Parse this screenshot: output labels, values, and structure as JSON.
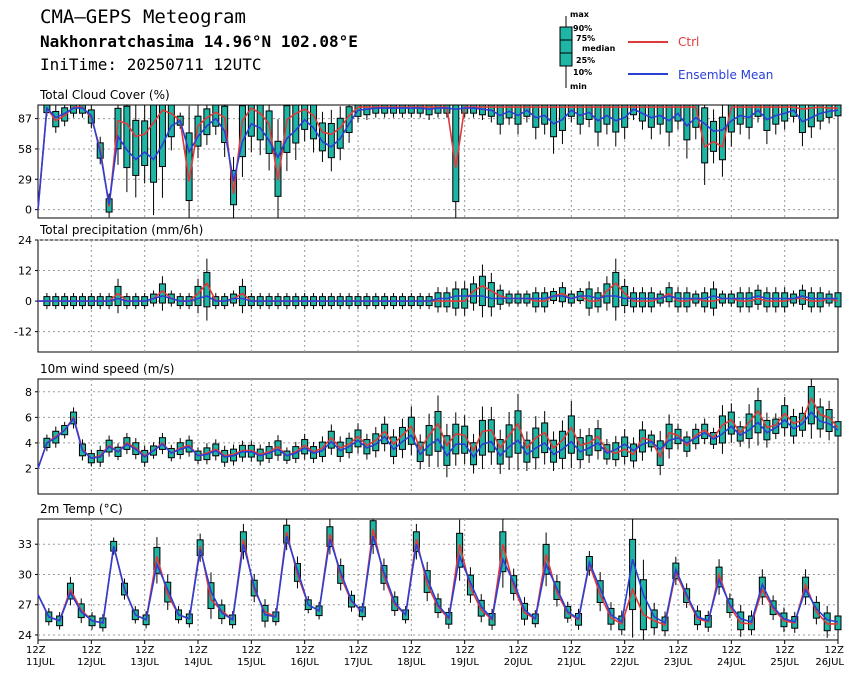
{
  "header": {
    "title": "CMA—GEPS Meteogram",
    "location": "Nakhonratchasima 14.96°N 102.08°E",
    "init_time": "IniTime: 20250711 12UTC"
  },
  "legend": {
    "box_labels": [
      "max",
      "90%",
      "75%",
      "median",
      "25%",
      "10%",
      "min"
    ],
    "ctrl_label": "Ctrl",
    "mean_label": "Ensemble Mean",
    "colors": {
      "ctrl": "#e03a3a",
      "mean": "#2a3fd6",
      "box": "#1fb5a5"
    }
  },
  "x_axis": {
    "ticks": [
      {
        "top": "12Z",
        "bottom": "11JUL"
      },
      {
        "top": "12Z",
        "bottom": "12JUL"
      },
      {
        "top": "12Z",
        "bottom": "13JUL"
      },
      {
        "top": "12Z",
        "bottom": "14JUL"
      },
      {
        "top": "12Z",
        "bottom": "15JUL"
      },
      {
        "top": "12Z",
        "bottom": "16JUL"
      },
      {
        "top": "12Z",
        "bottom": "17JUL"
      },
      {
        "top": "12Z",
        "bottom": "18JUL"
      },
      {
        "top": "12Z",
        "bottom": "19JUL"
      },
      {
        "top": "12Z",
        "bottom": "20JUL"
      },
      {
        "top": "12Z",
        "bottom": "21JUL"
      },
      {
        "top": "12Z",
        "bottom": "22JUL"
      },
      {
        "top": "12Z",
        "bottom": "23JUL"
      },
      {
        "top": "12Z",
        "bottom": "24JUL"
      },
      {
        "top": "12Z",
        "bottom": "25JUL"
      },
      {
        "top": "12Z",
        "bottom": "26JUL"
      }
    ]
  },
  "chart_data": [
    {
      "type": "line",
      "title": "Total Cloud Cover (%)",
      "ylim": [
        -8,
        100
      ],
      "yticks": [
        0,
        29,
        58,
        87
      ],
      "x_unit": "6-hourly steps from 2025-07-11 12UTC",
      "series": [
        {
          "name": "Ctrl",
          "values": [
            0,
            97,
            85,
            90,
            98,
            98,
            88,
            58,
            3,
            85,
            82,
            70,
            72,
            83,
            95,
            92,
            85,
            27,
            80,
            88,
            93,
            88,
            15,
            85,
            97,
            92,
            82,
            28,
            86,
            92,
            96,
            90,
            74,
            72,
            78,
            90,
            98,
            98,
            98,
            98,
            98,
            98,
            98,
            98,
            98,
            98,
            98,
            40,
            98,
            98,
            98,
            98,
            98,
            98,
            98,
            98,
            98,
            98,
            98,
            98,
            98,
            98,
            98,
            98,
            98,
            98,
            98,
            98,
            98,
            98,
            98,
            98,
            98,
            98,
            98,
            60,
            65,
            60,
            98,
            98,
            98,
            98,
            98,
            98,
            98,
            98,
            96,
            97,
            98,
            97,
            97
          ]
        },
        {
          "name": "Ensemble Mean",
          "values": [
            0,
            97,
            88,
            92,
            97,
            97,
            90,
            55,
            5,
            70,
            57,
            48,
            55,
            48,
            62,
            80,
            85,
            55,
            70,
            80,
            87,
            75,
            27,
            65,
            82,
            78,
            66,
            50,
            68,
            76,
            86,
            78,
            65,
            60,
            68,
            82,
            95,
            96,
            97,
            97,
            97,
            97,
            97,
            97,
            96,
            97,
            97,
            96,
            97,
            97,
            96,
            95,
            90,
            94,
            90,
            95,
            88,
            90,
            82,
            86,
            95,
            90,
            93,
            85,
            90,
            85,
            88,
            96,
            92,
            88,
            90,
            85,
            92,
            80,
            88,
            82,
            75,
            76,
            85,
            90,
            88,
            95,
            86,
            90,
            92,
            95,
            84,
            88,
            92,
            94,
            95
          ]
        }
      ]
    },
    {
      "type": "line",
      "title": "Total precipitation (mm/6h)",
      "ylim": [
        -20,
        24
      ],
      "yticks": [
        -12,
        0,
        12,
        24
      ],
      "series": [
        {
          "name": "Ctrl",
          "values": [
            0,
            0,
            0,
            0,
            0,
            0,
            0,
            0,
            0,
            3,
            0,
            0,
            0,
            1,
            4,
            1,
            0,
            0,
            3,
            7,
            0,
            0,
            1,
            3,
            0,
            0,
            0,
            0,
            0,
            0,
            0,
            0,
            0,
            0,
            0,
            0,
            0,
            0,
            0,
            0,
            0,
            0,
            0,
            0,
            0,
            0,
            0,
            0,
            0,
            4,
            6,
            4,
            2,
            1,
            1,
            1,
            0,
            0,
            2,
            3,
            1,
            2,
            0,
            0,
            4,
            7,
            3,
            0,
            0,
            0,
            1,
            3,
            0,
            0,
            1,
            0,
            0,
            1,
            1,
            0,
            0,
            1,
            0,
            0,
            0,
            1,
            1,
            0,
            0,
            1,
            0
          ]
        },
        {
          "name": "Ensemble Mean",
          "values": [
            0,
            0,
            0,
            0,
            0,
            0,
            0,
            0,
            0,
            1,
            0,
            0,
            0,
            1,
            2,
            1,
            0,
            0,
            1,
            2,
            0,
            0,
            1,
            1,
            0,
            0,
            0,
            0,
            0,
            0,
            0,
            0,
            0,
            0,
            0,
            0,
            0,
            0,
            0,
            0,
            0,
            0,
            0,
            0,
            0,
            1,
            1,
            2,
            2,
            2,
            2,
            1,
            1,
            1,
            1,
            1,
            1,
            1,
            2,
            2,
            1,
            2,
            2,
            1,
            2,
            2,
            1,
            1,
            1,
            1,
            1,
            2,
            1,
            1,
            1,
            1,
            2,
            1,
            1,
            1,
            1,
            2,
            1,
            1,
            1,
            1,
            2,
            1,
            1,
            1,
            1
          ]
        }
      ]
    },
    {
      "type": "line",
      "title": "10m wind speed (m/s)",
      "ylim": [
        0,
        9
      ],
      "yticks": [
        2,
        4,
        6,
        8
      ],
      "series": [
        {
          "name": "Ctrl",
          "values": [
            2.0,
            4.0,
            4.5,
            5.0,
            6.0,
            3.5,
            2.8,
            3.0,
            3.8,
            3.3,
            4.0,
            3.6,
            3.0,
            3.4,
            4.0,
            3.2,
            3.6,
            3.8,
            3.0,
            3.2,
            3.5,
            3.0,
            3.1,
            3.4,
            3.4,
            3.1,
            3.3,
            3.7,
            3.0,
            3.3,
            3.8,
            3.3,
            3.6,
            4.4,
            3.6,
            3.9,
            4.5,
            3.8,
            4.2,
            4.9,
            3.9,
            4.6,
            5.3,
            3.5,
            4.6,
            5.5,
            3.8,
            4.7,
            4.6,
            3.4,
            4.9,
            5.0,
            3.6,
            4.6,
            5.5,
            3.6,
            4.4,
            4.8,
            3.6,
            4.2,
            5.2,
            3.8,
            4.0,
            4.5,
            3.4,
            3.2,
            3.5,
            3.1,
            4.4,
            4.2,
            2.9,
            4.8,
            4.6,
            3.8,
            4.6,
            5.0,
            4.4,
            5.4,
            5.8,
            4.8,
            5.6,
            6.5,
            5.2,
            5.4,
            6.3,
            5.5,
            5.8,
            7.5,
            6.2,
            6.0,
            5.2
          ]
        },
        {
          "name": "Ensemble Mean",
          "values": [
            2.0,
            4.0,
            4.4,
            5.0,
            5.9,
            3.4,
            2.8,
            2.9,
            3.7,
            3.3,
            3.9,
            3.5,
            2.9,
            3.4,
            3.9,
            3.2,
            3.5,
            3.7,
            3.0,
            3.1,
            3.4,
            2.9,
            3.0,
            3.3,
            3.3,
            3.0,
            3.2,
            3.5,
            3.0,
            3.2,
            3.6,
            3.2,
            3.4,
            4.1,
            3.4,
            3.7,
            4.2,
            3.6,
            3.9,
            4.5,
            3.5,
            4.1,
            4.6,
            3.1,
            3.8,
            4.3,
            3.0,
            3.9,
            3.9,
            2.9,
            3.9,
            4.1,
            3.0,
            3.7,
            4.2,
            3.1,
            3.6,
            4.0,
            3.1,
            3.5,
            4.1,
            3.3,
            3.6,
            4.0,
            3.2,
            3.5,
            3.9,
            3.4,
            3.9,
            4.1,
            3.5,
            4.2,
            4.4,
            4.0,
            4.4,
            4.8,
            4.3,
            4.7,
            5.3,
            4.6,
            5.0,
            5.6,
            4.8,
            5.2,
            5.8,
            5.1,
            5.5,
            6.4,
            5.7,
            5.5,
            5.0
          ]
        }
      ]
    },
    {
      "type": "line",
      "title": "2m Temp (°C)",
      "ylim": [
        23.5,
        35.5
      ],
      "yticks": [
        24,
        27,
        30,
        33
      ],
      "series": [
        {
          "name": "Ctrl",
          "values": [
            28.0,
            25.8,
            25.4,
            28.5,
            26.5,
            25.4,
            25.2,
            32.8,
            28.5,
            26.0,
            25.5,
            31.8,
            28.0,
            26.0,
            25.6,
            32.8,
            27.5,
            26.4,
            25.5,
            33.5,
            28.5,
            26.3,
            25.8,
            34.2,
            30.0,
            27.0,
            26.4,
            34.0,
            29.8,
            27.3,
            26.3,
            34.5,
            29.8,
            27.0,
            26.0,
            33.5,
            29.0,
            26.8,
            25.6,
            33.0,
            28.7,
            26.5,
            25.5,
            33.0,
            28.8,
            26.2,
            25.6,
            32.0,
            28.2,
            26.2,
            25.5,
            31.0,
            28.0,
            25.7,
            25.1,
            28.5,
            26.0,
            25.4,
            25.0,
            30.2,
            27.8,
            25.6,
            25.3,
            30.0,
            26.8,
            25.2,
            25.1,
            28.5,
            26.6,
            25.4,
            25.2,
            29.0,
            26.3,
            25.1,
            25.1
          ]
        },
        {
          "name": "Ensemble Mean",
          "values": [
            28.0,
            25.8,
            25.4,
            28.2,
            26.3,
            25.4,
            25.2,
            32.8,
            28.6,
            26.0,
            25.5,
            31.0,
            28.5,
            26.0,
            25.6,
            32.5,
            28.3,
            26.2,
            25.5,
            33.0,
            28.8,
            26.0,
            25.8,
            33.8,
            30.4,
            27.0,
            26.4,
            33.5,
            30.2,
            27.4,
            26.3,
            33.8,
            30.2,
            27.2,
            26.0,
            33.0,
            29.6,
            27.0,
            25.7,
            31.8,
            29.2,
            26.8,
            25.6,
            31.5,
            29.2,
            26.5,
            25.6,
            31.0,
            28.6,
            26.3,
            25.6,
            31.2,
            28.6,
            26.0,
            25.3,
            31.5,
            28.0,
            25.8,
            25.2,
            30.5,
            28.0,
            25.8,
            25.4,
            29.5,
            27.0,
            25.6,
            25.3,
            29.0,
            26.8,
            25.6,
            25.3,
            28.5,
            26.6,
            25.5,
            25.3
          ]
        }
      ]
    }
  ]
}
